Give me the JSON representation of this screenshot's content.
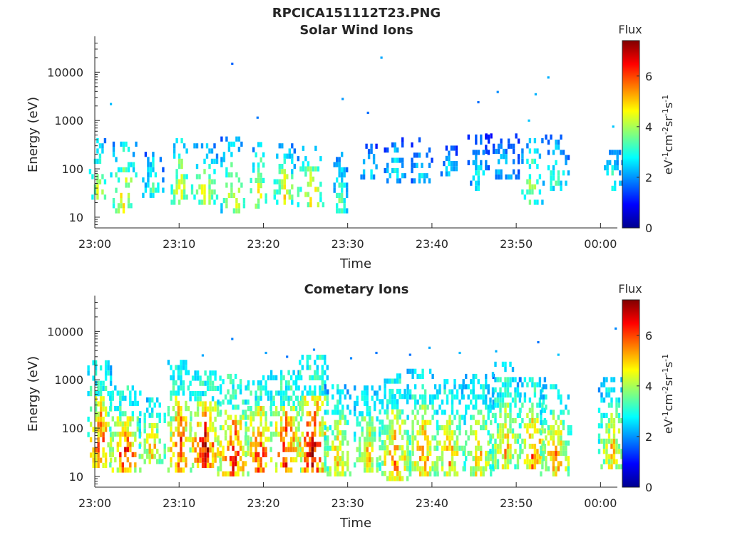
{
  "figure_title": "RPCICA151112T23.PNG",
  "chart_data": [
    {
      "type": "heatmap",
      "title": "Solar Wind Ions",
      "xlabel": "Time",
      "ylabel": "Energy (eV)",
      "x_ticks": [
        "23:00",
        "23:10",
        "23:20",
        "23:30",
        "23:40",
        "23:50",
        "00:00"
      ],
      "x_range_minutes": [
        0,
        62
      ],
      "y_scale": "log",
      "y_ticks": [
        "10",
        "100",
        "1000",
        "10000"
      ],
      "y_range_eV": [
        6,
        45000
      ],
      "colorbar": {
        "title": "Flux",
        "label": "eV-1cm-2sr-1s-1",
        "ticks": [
          "0",
          "2",
          "4",
          "6"
        ],
        "range": [
          0,
          7.4
        ],
        "colormap": "jet"
      },
      "bursts": [
        {
          "t": 0.3,
          "emin": 18,
          "emax": 350,
          "peak": 4.6,
          "width": 1.0
        },
        {
          "t": 3.4,
          "emin": 12,
          "emax": 330,
          "peak": 4.8,
          "width": 1.6
        },
        {
          "t": 6.8,
          "emin": 25,
          "emax": 220,
          "peak": 3.6,
          "width": 1.2
        },
        {
          "t": 10.0,
          "emin": 18,
          "emax": 420,
          "peak": 4.8,
          "width": 1.0
        },
        {
          "t": 13.0,
          "emin": 18,
          "emax": 300,
          "peak": 4.6,
          "width": 1.6
        },
        {
          "t": 16.3,
          "emin": 12,
          "emax": 380,
          "peak": 4.8,
          "width": 1.4
        },
        {
          "t": 19.4,
          "emin": 15,
          "emax": 320,
          "peak": 4.7,
          "width": 1.0
        },
        {
          "t": 22.4,
          "emin": 18,
          "emax": 280,
          "peak": 4.9,
          "width": 1.2
        },
        {
          "t": 25.6,
          "emin": 16,
          "emax": 300,
          "peak": 4.9,
          "width": 1.6
        },
        {
          "t": 29.0,
          "emin": 12,
          "emax": 220,
          "peak": 3.6,
          "width": 1.0
        },
        {
          "t": 32.5,
          "emin": 60,
          "emax": 300,
          "peak": 3.0,
          "width": 1.0
        },
        {
          "t": 35.5,
          "emin": 50,
          "emax": 420,
          "peak": 3.0,
          "width": 1.2
        },
        {
          "t": 38.7,
          "emin": 50,
          "emax": 420,
          "peak": 2.9,
          "width": 1.2
        },
        {
          "t": 42.0,
          "emin": 70,
          "emax": 280,
          "peak": 2.8,
          "width": 1.0
        },
        {
          "t": 45.4,
          "emin": 35,
          "emax": 420,
          "peak": 3.0,
          "width": 1.2
        },
        {
          "t": 48.3,
          "emin": 60,
          "emax": 450,
          "peak": 2.7,
          "width": 2.0
        },
        {
          "t": 51.8,
          "emin": 18,
          "emax": 400,
          "peak": 4.2,
          "width": 1.2
        },
        {
          "t": 54.6,
          "emin": 35,
          "emax": 420,
          "peak": 3.4,
          "width": 1.5
        },
        {
          "t": 61.3,
          "emin": 35,
          "emax": 300,
          "peak": 3.2,
          "width": 1.2
        }
      ],
      "high_energy_points": [
        {
          "t": 1.9,
          "e": 2200
        },
        {
          "t": 16.3,
          "e": 15000
        },
        {
          "t": 19.3,
          "e": 1150
        },
        {
          "t": 29.4,
          "e": 2800
        },
        {
          "t": 32.4,
          "e": 1450
        },
        {
          "t": 34.0,
          "e": 20000
        },
        {
          "t": 45.5,
          "e": 2400
        },
        {
          "t": 47.8,
          "e": 3900
        },
        {
          "t": 51.5,
          "e": 1000
        },
        {
          "t": 52.3,
          "e": 3500
        },
        {
          "t": 53.8,
          "e": 7800
        },
        {
          "t": 61.5,
          "e": 750
        }
      ]
    },
    {
      "type": "heatmap",
      "title": "Cometary Ions",
      "xlabel": "Time",
      "ylabel": "Energy (eV)",
      "x_ticks": [
        "23:00",
        "23:10",
        "23:20",
        "23:30",
        "23:40",
        "23:50",
        "00:00"
      ],
      "x_range_minutes": [
        0,
        62
      ],
      "y_scale": "log",
      "y_ticks": [
        "10",
        "100",
        "1000",
        "10000"
      ],
      "y_range_eV": [
        6,
        45000
      ],
      "colorbar": {
        "title": "Flux",
        "label": "eV-1cm-2sr-1s-1",
        "ticks": [
          "0",
          "2",
          "4",
          "6"
        ],
        "range": [
          0,
          7.4
        ],
        "colormap": "jet"
      },
      "bursts": [
        {
          "t": 0.5,
          "emin": 15,
          "emax": 2000,
          "peak": 6.2,
          "width": 1.4
        },
        {
          "t": 3.5,
          "emin": 12,
          "emax": 700,
          "peak": 6.4,
          "width": 1.8
        },
        {
          "t": 6.8,
          "emin": 18,
          "emax": 400,
          "peak": 5.2,
          "width": 1.6
        },
        {
          "t": 10.0,
          "emin": 12,
          "emax": 2400,
          "peak": 6.4,
          "width": 1.4
        },
        {
          "t": 13.0,
          "emin": 15,
          "emax": 1400,
          "peak": 6.8,
          "width": 1.8
        },
        {
          "t": 16.3,
          "emin": 10,
          "emax": 1200,
          "peak": 6.6,
          "width": 1.8
        },
        {
          "t": 19.4,
          "emin": 12,
          "emax": 1100,
          "peak": 6.4,
          "width": 1.6
        },
        {
          "t": 22.6,
          "emin": 12,
          "emax": 1300,
          "peak": 6.5,
          "width": 1.8
        },
        {
          "t": 25.7,
          "emin": 12,
          "emax": 2800,
          "peak": 6.9,
          "width": 1.8
        },
        {
          "t": 28.8,
          "emin": 10,
          "emax": 700,
          "peak": 5.2,
          "width": 1.6
        },
        {
          "t": 32.3,
          "emin": 12,
          "emax": 700,
          "peak": 5.2,
          "width": 1.6
        },
        {
          "t": 35.5,
          "emin": 8,
          "emax": 1100,
          "peak": 5.8,
          "width": 1.8
        },
        {
          "t": 38.8,
          "emin": 10,
          "emax": 1400,
          "peak": 5.6,
          "width": 1.8
        },
        {
          "t": 42.0,
          "emin": 10,
          "emax": 900,
          "peak": 5.4,
          "width": 1.8
        },
        {
          "t": 45.4,
          "emin": 10,
          "emax": 1100,
          "peak": 5.2,
          "width": 1.8
        },
        {
          "t": 48.6,
          "emin": 14,
          "emax": 2000,
          "peak": 5.2,
          "width": 1.8
        },
        {
          "t": 51.9,
          "emin": 14,
          "emax": 900,
          "peak": 6.0,
          "width": 1.6
        },
        {
          "t": 54.6,
          "emin": 10,
          "emax": 700,
          "peak": 5.6,
          "width": 1.8
        },
        {
          "t": 61.3,
          "emin": 14,
          "emax": 900,
          "peak": 5.2,
          "width": 1.6
        }
      ],
      "high_energy_points": [
        {
          "t": 16.3,
          "e": 7000
        },
        {
          "t": 12.8,
          "e": 3200
        },
        {
          "t": 20.3,
          "e": 3600
        },
        {
          "t": 22.8,
          "e": 3000
        },
        {
          "t": 26.0,
          "e": 4200
        },
        {
          "t": 30.4,
          "e": 2800
        },
        {
          "t": 33.4,
          "e": 3600
        },
        {
          "t": 37.4,
          "e": 3300
        },
        {
          "t": 39.7,
          "e": 4600
        },
        {
          "t": 43.3,
          "e": 3600
        },
        {
          "t": 47.6,
          "e": 3900
        },
        {
          "t": 52.6,
          "e": 6000
        },
        {
          "t": 55.0,
          "e": 3300
        },
        {
          "t": 61.8,
          "e": 11500
        }
      ]
    }
  ]
}
